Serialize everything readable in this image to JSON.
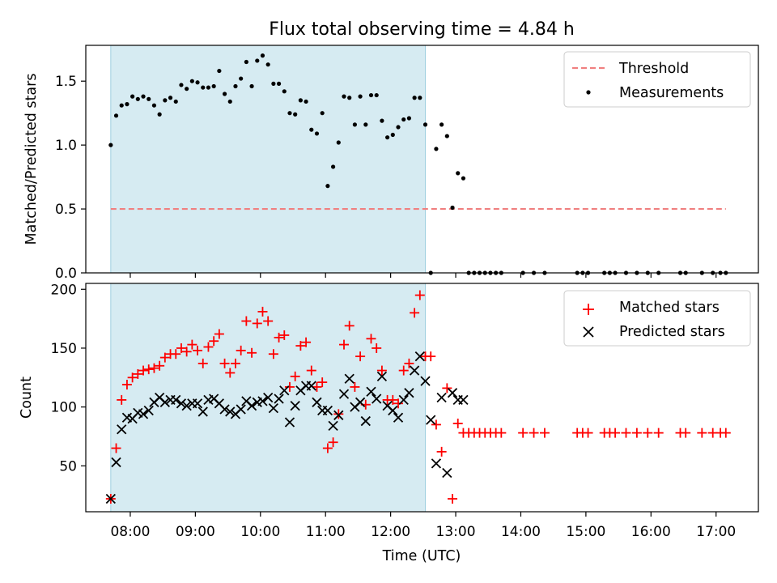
{
  "figure": {
    "title": "Flux total observing time = 4.84 h"
  },
  "chart_data": [
    {
      "type": "scatter",
      "panel": "top",
      "title": "Flux total observing time = 4.84 h",
      "xlabel": "",
      "ylabel": "Matched/Predicted stars",
      "xlim": [
        "07:19",
        "17:39"
      ],
      "ylim": [
        0,
        1.78
      ],
      "yticks": [
        0.0,
        0.5,
        1.0,
        1.5
      ],
      "ytick_labels": [
        "0.0",
        "0.5",
        "1.0",
        "1.5"
      ],
      "shaded_span": [
        "07:42",
        "12:32"
      ],
      "shaded_color": "#add8e6",
      "legend_position": "top-right",
      "threshold": {
        "name": "Threshold",
        "value": 0.5,
        "x_range": [
          "07:42",
          "17:09"
        ],
        "color": "#f08080",
        "style": "dashed"
      },
      "series": [
        {
          "name": "Measurements",
          "color": "#000000",
          "marker": "dot",
          "x": [
            "07:42",
            "07:47",
            "07:52",
            "07:57",
            "08:02",
            "08:07",
            "08:12",
            "08:17",
            "08:22",
            "08:27",
            "08:32",
            "08:37",
            "08:42",
            "08:47",
            "08:52",
            "08:57",
            "09:02",
            "09:07",
            "09:12",
            "09:17",
            "09:22",
            "09:27",
            "09:32",
            "09:37",
            "09:42",
            "09:47",
            "09:52",
            "09:57",
            "10:02",
            "10:07",
            "10:12",
            "10:17",
            "10:22",
            "10:27",
            "10:32",
            "10:37",
            "10:42",
            "10:47",
            "10:52",
            "10:57",
            "11:02",
            "11:07",
            "11:12",
            "11:17",
            "11:22",
            "11:27",
            "11:32",
            "11:37",
            "11:42",
            "11:47",
            "11:52",
            "11:57",
            "12:02",
            "12:07",
            "12:12",
            "12:17",
            "12:22",
            "12:27",
            "12:32",
            "12:37",
            "12:42",
            "12:47",
            "12:52",
            "12:57",
            "13:02",
            "13:07",
            "13:12",
            "13:17",
            "13:22",
            "13:27",
            "13:32",
            "13:37",
            "13:42",
            "14:02",
            "14:12",
            "14:22",
            "14:52",
            "14:57",
            "15:02",
            "15:17",
            "15:22",
            "15:27",
            "15:37",
            "15:47",
            "15:57",
            "16:07",
            "16:27",
            "16:32",
            "16:47",
            "16:57",
            "17:04",
            "17:09"
          ],
          "y": [
            1.0,
            1.23,
            1.31,
            1.32,
            1.38,
            1.36,
            1.38,
            1.36,
            1.31,
            1.24,
            1.35,
            1.37,
            1.34,
            1.47,
            1.44,
            1.5,
            1.49,
            1.45,
            1.45,
            1.46,
            1.58,
            1.4,
            1.34,
            1.46,
            1.52,
            1.65,
            1.46,
            1.66,
            1.7,
            1.63,
            1.48,
            1.48,
            1.42,
            1.25,
            1.24,
            1.35,
            1.34,
            1.12,
            1.09,
            1.25,
            0.68,
            0.83,
            1.02,
            1.38,
            1.37,
            1.16,
            1.38,
            1.16,
            1.39,
            1.39,
            1.19,
            1.06,
            1.08,
            1.14,
            1.2,
            1.21,
            1.37,
            1.37,
            1.16,
            0.0,
            0.97,
            1.16,
            1.07,
            0.51,
            0.78,
            0.74,
            0.0,
            0.0,
            0.0,
            0.0,
            0.0,
            0.0,
            0.0,
            0.0,
            0.0,
            0.0,
            0.0,
            0.0,
            0.0,
            0.0,
            0.0,
            0.0,
            0.0,
            0.0,
            0.0,
            0.0,
            0.0,
            0.0,
            0.0,
            0.0,
            0.0,
            0.0
          ]
        }
      ]
    },
    {
      "type": "scatter",
      "panel": "bottom",
      "title": "",
      "xlabel": "Time (UTC)",
      "ylabel": "Count",
      "xlim": [
        "07:19",
        "17:39"
      ],
      "ylim": [
        11,
        205
      ],
      "xticks": [
        "08:00",
        "09:00",
        "10:00",
        "11:00",
        "12:00",
        "13:00",
        "14:00",
        "15:00",
        "16:00",
        "17:00"
      ],
      "yticks": [
        50,
        100,
        150,
        200
      ],
      "ytick_labels": [
        "50",
        "100",
        "150",
        "200"
      ],
      "shaded_span": [
        "07:42",
        "12:32"
      ],
      "shaded_color": "#add8e6",
      "legend_position": "top-right",
      "series": [
        {
          "name": "Matched stars",
          "color": "#ff0000",
          "marker": "plus",
          "x": [
            "07:42",
            "07:47",
            "07:52",
            "07:57",
            "08:02",
            "08:07",
            "08:12",
            "08:17",
            "08:22",
            "08:27",
            "08:32",
            "08:37",
            "08:42",
            "08:47",
            "08:52",
            "08:57",
            "09:02",
            "09:07",
            "09:12",
            "09:17",
            "09:22",
            "09:27",
            "09:32",
            "09:37",
            "09:42",
            "09:47",
            "09:52",
            "09:57",
            "10:02",
            "10:07",
            "10:12",
            "10:17",
            "10:22",
            "10:27",
            "10:32",
            "10:37",
            "10:42",
            "10:47",
            "10:52",
            "10:57",
            "11:02",
            "11:07",
            "11:12",
            "11:17",
            "11:22",
            "11:27",
            "11:32",
            "11:37",
            "11:42",
            "11:47",
            "11:52",
            "11:57",
            "12:02",
            "12:07",
            "12:12",
            "12:17",
            "12:22",
            "12:27",
            "12:32",
            "12:37",
            "12:42",
            "12:47",
            "12:52",
            "12:57",
            "13:02",
            "13:07",
            "13:12",
            "13:17",
            "13:22",
            "13:27",
            "13:32",
            "13:37",
            "13:42",
            "14:02",
            "14:12",
            "14:22",
            "14:52",
            "14:57",
            "15:02",
            "15:17",
            "15:22",
            "15:27",
            "15:37",
            "15:47",
            "15:57",
            "16:07",
            "16:27",
            "16:32",
            "16:47",
            "16:57",
            "17:04",
            "17:09"
          ],
          "y": [
            22,
            65,
            106,
            119,
            125,
            128,
            131,
            132,
            133,
            135,
            142,
            145,
            145,
            150,
            147,
            153,
            148,
            137,
            151,
            156,
            162,
            137,
            129,
            137,
            148,
            173,
            146,
            171,
            181,
            173,
            145,
            159,
            161,
            117,
            126,
            152,
            155,
            131,
            117,
            121,
            65,
            70,
            94,
            153,
            169,
            117,
            143,
            102,
            158,
            150,
            131,
            106,
            106,
            103,
            131,
            137,
            180,
            195,
            143,
            143,
            85,
            62,
            116,
            22,
            86,
            78,
            78,
            78,
            78,
            78,
            78,
            78,
            78,
            78,
            78,
            78,
            78,
            78,
            78,
            78,
            78,
            78,
            78,
            78,
            78,
            78,
            78,
            78,
            78,
            78,
            78,
            78
          ]
        },
        {
          "name": "Predicted stars",
          "color": "#000000",
          "marker": "x",
          "x": [
            "07:42",
            "07:47",
            "07:52",
            "07:57",
            "08:02",
            "08:07",
            "08:12",
            "08:17",
            "08:22",
            "08:27",
            "08:32",
            "08:37",
            "08:42",
            "08:47",
            "08:52",
            "08:57",
            "09:02",
            "09:07",
            "09:12",
            "09:17",
            "09:22",
            "09:27",
            "09:32",
            "09:37",
            "09:42",
            "09:47",
            "09:52",
            "09:57",
            "10:02",
            "10:07",
            "10:12",
            "10:17",
            "10:22",
            "10:27",
            "10:32",
            "10:37",
            "10:42",
            "10:47",
            "10:52",
            "10:57",
            "11:02",
            "11:07",
            "11:12",
            "11:17",
            "11:22",
            "11:27",
            "11:32",
            "11:37",
            "11:42",
            "11:47",
            "11:52",
            "11:57",
            "12:02",
            "12:07",
            "12:12",
            "12:17",
            "12:22",
            "12:27",
            "12:32",
            "12:37",
            "12:42",
            "12:47",
            "12:52",
            "12:57",
            "13:02",
            "13:07"
          ],
          "y": [
            22,
            53,
            81,
            91,
            90,
            95,
            94,
            97,
            104,
            108,
            104,
            106,
            106,
            103,
            101,
            103,
            103,
            96,
            106,
            107,
            103,
            98,
            96,
            94,
            98,
            105,
            101,
            104,
            105,
            108,
            99,
            107,
            114,
            87,
            101,
            114,
            118,
            118,
            104,
            97,
            97,
            84,
            93,
            111,
            124,
            100,
            104,
            88,
            113,
            107,
            126,
            101,
            97,
            91,
            106,
            112,
            131,
            143,
            122,
            89,
            52,
            108,
            44,
            112,
            106,
            106
          ]
        }
      ]
    }
  ]
}
